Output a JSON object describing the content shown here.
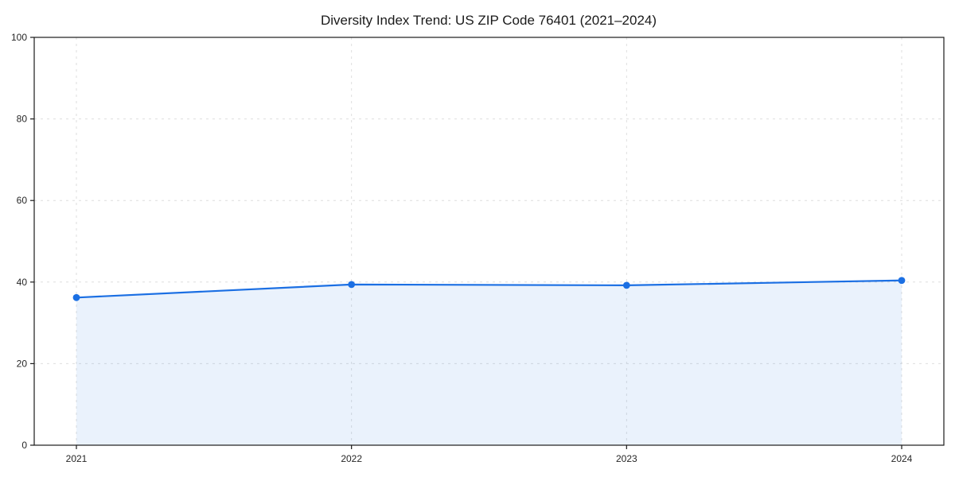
{
  "chart_data": {
    "type": "area",
    "title": "Diversity Index Trend: US ZIP Code 76401 (2021–2024)",
    "categories": [
      "2021",
      "2022",
      "2023",
      "2024"
    ],
    "values": [
      36.2,
      39.4,
      39.2,
      40.4
    ],
    "xlabel": "",
    "ylabel": "",
    "ylim": [
      0,
      100
    ],
    "yticks": [
      0,
      20,
      40,
      60,
      80,
      100
    ],
    "grid": true,
    "grid_style": "dashed",
    "legend": "none",
    "marker": "circle",
    "colors": {
      "line": "#1b6fe3",
      "marker": "#1b6fe3",
      "fill_rgba": "rgba(27, 111, 227, 0.09)",
      "grid": "#dedede",
      "spine": "#1a1a1a",
      "tick_text": "#262626",
      "title_text": "#1a1a1a",
      "background": "#ffffff"
    }
  }
}
